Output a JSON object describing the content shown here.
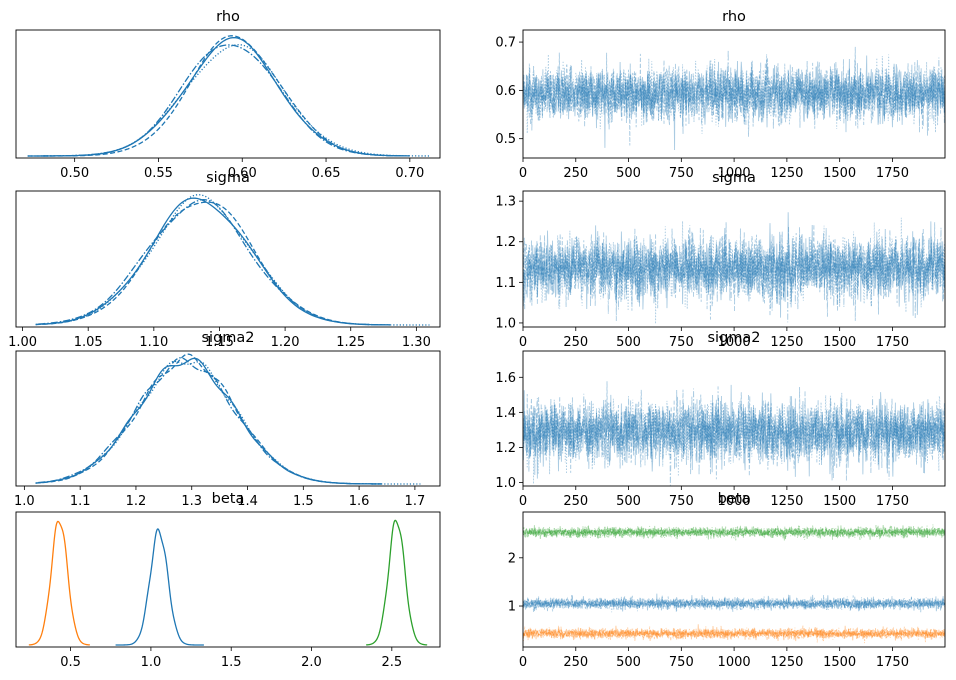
{
  "chart_data": [
    {
      "type": "line",
      "plot_kind": "posterior-density",
      "title": "rho",
      "xlim": [
        0.465,
        0.718
      ],
      "xticks": [
        0.5,
        0.55,
        0.6,
        0.65,
        0.7
      ],
      "xtick_labels": [
        "0.50",
        "0.55",
        "0.60",
        "0.65",
        "0.70"
      ],
      "y_ticks_shown": false,
      "series": [
        {
          "color": "#1f77b4",
          "linestyle": "solid",
          "mean": 0.594,
          "sd": 0.028,
          "x_min": 0.472,
          "x_max": 0.7
        },
        {
          "color": "#1f77b4",
          "linestyle": "dashed",
          "mean": 0.596,
          "sd": 0.027,
          "x_min": 0.472,
          "x_max": 0.695
        },
        {
          "color": "#1f77b4",
          "linestyle": "dashdot",
          "mean": 0.593,
          "sd": 0.028,
          "x_min": 0.48,
          "x_max": 0.7
        },
        {
          "color": "#1f77b4",
          "linestyle": "dotted",
          "mean": 0.595,
          "sd": 0.029,
          "x_min": 0.472,
          "x_max": 0.712
        }
      ]
    },
    {
      "type": "line",
      "plot_kind": "trace",
      "title": "rho",
      "xlim": [
        0,
        1999
      ],
      "ylim": [
        0.46,
        0.725
      ],
      "xticks": [
        0,
        250,
        500,
        750,
        1000,
        1250,
        1500,
        1750
      ],
      "xtick_labels": [
        "0",
        "250",
        "500",
        "750",
        "1000",
        "1250",
        "1500",
        "1750"
      ],
      "yticks": [
        0.5,
        0.6,
        0.7
      ],
      "ytick_labels": [
        "0.5",
        "0.6",
        "0.7"
      ],
      "draws": 2000,
      "chains": 4,
      "series": [
        {
          "color": "#1f77b4",
          "mean": 0.594,
          "sd": 0.028
        }
      ]
    },
    {
      "type": "line",
      "plot_kind": "posterior-density",
      "title": "sigma",
      "xlim": [
        0.995,
        1.318
      ],
      "xticks": [
        1.0,
        1.05,
        1.1,
        1.15,
        1.2,
        1.25,
        1.3
      ],
      "xtick_labels": [
        "1.00",
        "1.05",
        "1.10",
        "1.15",
        "1.20",
        "1.25",
        "1.30"
      ],
      "y_ticks_shown": false,
      "series": [
        {
          "color": "#1f77b4",
          "linestyle": "solid",
          "mean": 1.135,
          "sd": 0.038,
          "x_min": 1.01,
          "x_max": 1.28
        },
        {
          "color": "#1f77b4",
          "linestyle": "dashed",
          "mean": 1.137,
          "sd": 0.038,
          "x_min": 1.01,
          "x_max": 1.275
        },
        {
          "color": "#1f77b4",
          "linestyle": "dashdot",
          "mean": 1.134,
          "sd": 0.039,
          "x_min": 1.012,
          "x_max": 1.28
        },
        {
          "color": "#1f77b4",
          "linestyle": "dotted",
          "mean": 1.136,
          "sd": 0.038,
          "x_min": 1.01,
          "x_max": 1.31
        }
      ]
    },
    {
      "type": "line",
      "plot_kind": "trace",
      "title": "sigma",
      "xlim": [
        0,
        1999
      ],
      "ylim": [
        0.99,
        1.325
      ],
      "xticks": [
        0,
        250,
        500,
        750,
        1000,
        1250,
        1500,
        1750
      ],
      "xtick_labels": [
        "0",
        "250",
        "500",
        "750",
        "1000",
        "1250",
        "1500",
        "1750"
      ],
      "yticks": [
        1.0,
        1.1,
        1.2,
        1.3
      ],
      "ytick_labels": [
        "1.0",
        "1.1",
        "1.2",
        "1.3"
      ],
      "draws": 2000,
      "chains": 4,
      "series": [
        {
          "color": "#1f77b4",
          "mean": 1.135,
          "sd": 0.038
        }
      ]
    },
    {
      "type": "line",
      "plot_kind": "posterior-density",
      "title": "sigma2",
      "xlim": [
        0.985,
        1.745
      ],
      "xticks": [
        1.0,
        1.1,
        1.2,
        1.3,
        1.4,
        1.5,
        1.6,
        1.7
      ],
      "xtick_labels": [
        "1.0",
        "1.1",
        "1.2",
        "1.3",
        "1.4",
        "1.5",
        "1.6",
        "1.7"
      ],
      "y_ticks_shown": false,
      "series": [
        {
          "color": "#1f77b4",
          "linestyle": "solid",
          "mean": 1.29,
          "sd": 0.087,
          "x_min": 1.02,
          "x_max": 1.64
        },
        {
          "color": "#1f77b4",
          "linestyle": "dashed",
          "mean": 1.292,
          "sd": 0.086,
          "x_min": 1.02,
          "x_max": 1.63
        },
        {
          "color": "#1f77b4",
          "linestyle": "dashdot",
          "mean": 1.288,
          "sd": 0.088,
          "x_min": 1.025,
          "x_max": 1.64
        },
        {
          "color": "#1f77b4",
          "linestyle": "dotted",
          "mean": 1.291,
          "sd": 0.087,
          "x_min": 1.02,
          "x_max": 1.71
        }
      ]
    },
    {
      "type": "line",
      "plot_kind": "trace",
      "title": "sigma2",
      "xlim": [
        0,
        1999
      ],
      "ylim": [
        0.98,
        1.75
      ],
      "xticks": [
        0,
        250,
        500,
        750,
        1000,
        1250,
        1500,
        1750
      ],
      "xtick_labels": [
        "0",
        "250",
        "500",
        "750",
        "1000",
        "1250",
        "1500",
        "1750"
      ],
      "yticks": [
        1.0,
        1.2,
        1.4,
        1.6
      ],
      "ytick_labels": [
        "1.0",
        "1.2",
        "1.4",
        "1.6"
      ],
      "draws": 2000,
      "chains": 4,
      "series": [
        {
          "color": "#1f77b4",
          "mean": 1.29,
          "sd": 0.087
        }
      ]
    },
    {
      "type": "line",
      "plot_kind": "posterior-density",
      "title": "beta",
      "xlim": [
        0.16,
        2.8
      ],
      "xticks": [
        0.5,
        1.0,
        1.5,
        2.0,
        2.5
      ],
      "xtick_labels": [
        "0.5",
        "1.0",
        "1.5",
        "2.0",
        "2.5"
      ],
      "y_ticks_shown": false,
      "series": [
        {
          "color": "#ff7f0e",
          "mean": 0.43,
          "sd": 0.05,
          "x_min": 0.24,
          "x_max": 0.62
        },
        {
          "color": "#1f77b4",
          "mean": 1.05,
          "sd": 0.055,
          "x_min": 0.78,
          "x_max": 1.33
        },
        {
          "color": "#2ca02c",
          "mean": 2.53,
          "sd": 0.05,
          "x_min": 2.34,
          "x_max": 2.72
        }
      ]
    },
    {
      "type": "line",
      "plot_kind": "trace",
      "title": "beta",
      "xlim": [
        0,
        1999
      ],
      "ylim": [
        0.15,
        2.95
      ],
      "xticks": [
        0,
        250,
        500,
        750,
        1000,
        1250,
        1500,
        1750
      ],
      "xtick_labels": [
        "0",
        "250",
        "500",
        "750",
        "1000",
        "1250",
        "1500",
        "1750"
      ],
      "yticks": [
        1,
        2
      ],
      "ytick_labels": [
        "1",
        "2"
      ],
      "draws": 2000,
      "chains": 4,
      "series": [
        {
          "color": "#1f77b4",
          "mean": 1.05,
          "sd": 0.055
        },
        {
          "color": "#ff7f0e",
          "mean": 0.43,
          "sd": 0.05
        },
        {
          "color": "#2ca02c",
          "mean": 2.53,
          "sd": 0.05
        }
      ]
    }
  ]
}
